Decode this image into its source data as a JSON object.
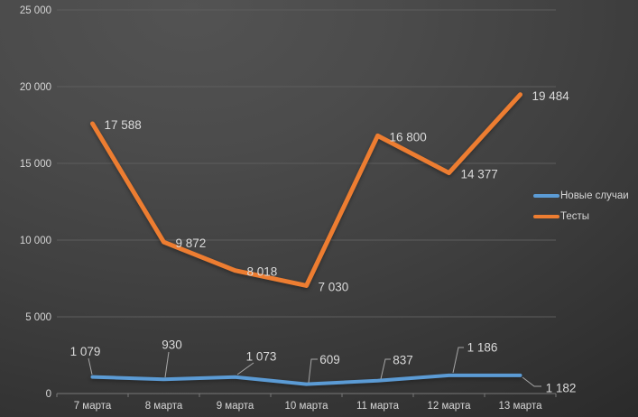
{
  "chart_data": {
    "type": "line",
    "title": "",
    "categories": [
      "7 марта",
      "8 марта",
      "9 марта",
      "10 марта",
      "11 марта",
      "12 марта",
      "13 марта"
    ],
    "series": [
      {
        "name": "Новые случаи",
        "color": "#5b9bd5",
        "values": [
          1079,
          930,
          1073,
          609,
          837,
          1186,
          1182
        ],
        "data_labels": [
          "1 079",
          "930",
          "1 073",
          "609",
          "837",
          "1 186",
          "1 182"
        ]
      },
      {
        "name": "Тесты",
        "color": "#ed7d31",
        "values": [
          17588,
          9872,
          8018,
          7030,
          16800,
          14377,
          19484
        ],
        "data_labels": [
          "17 588",
          "9 872",
          "8 018",
          "7 030",
          "16 800",
          "14 377",
          "19 484"
        ]
      }
    ],
    "y_axis": {
      "min": 0,
      "max": 25000,
      "step": 5000,
      "tick_labels": [
        "0",
        "5 000",
        "10 000",
        "15 000",
        "20 000",
        "25 000"
      ]
    },
    "x_axis": {
      "tick_labels": [
        "7 марта",
        "8 марта",
        "9 марта",
        "10 марта",
        "11 марта",
        "12 марта",
        "13 марта"
      ]
    },
    "grid": true,
    "legend_position": "right"
  },
  "colors": {
    "background_center": "#535353",
    "background_edge": "#2a2a2a",
    "gridline": "#5d5d5d",
    "axis_line": "#787878",
    "label_text": "#d6d6d6",
    "leader_line": "#a6a6a6",
    "series_new_cases": "#5b9bd5",
    "series_tests": "#ed7d31"
  }
}
